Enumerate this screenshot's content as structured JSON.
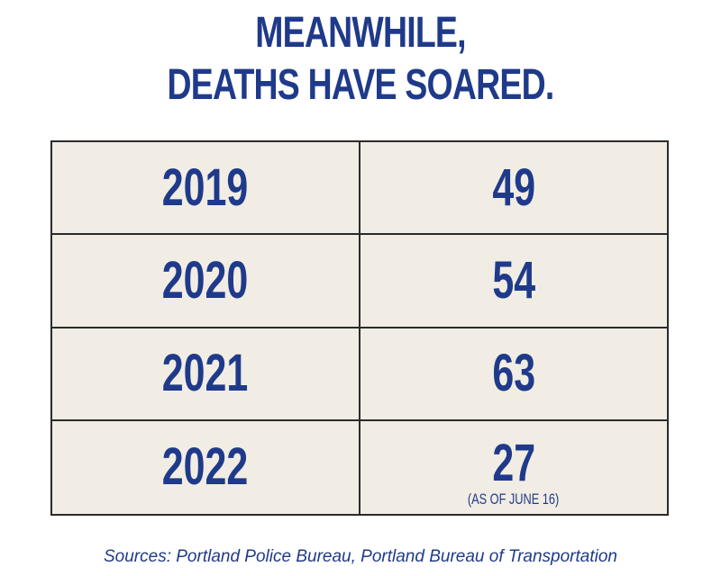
{
  "title_line1": "MEANWHILE,",
  "title_line2": "DEATHS HAVE SOARED.",
  "rows": [
    {
      "year": "2019",
      "deaths": "49",
      "note": ""
    },
    {
      "year": "2020",
      "deaths": "54",
      "note": ""
    },
    {
      "year": "2021",
      "deaths": "63",
      "note": ""
    },
    {
      "year": "2022",
      "deaths": "27",
      "note": "(AS OF JUNE 16)"
    }
  ],
  "sources": "Sources: Portland Police Bureau, Portland Bureau of Transportation",
  "colors": {
    "text": "#1f3a8a",
    "table_fill": "#f1ede4",
    "border": "#2b2b2b"
  },
  "chart_data": {
    "type": "table",
    "title": "MEANWHILE, DEATHS HAVE SOARED.",
    "columns": [
      "",
      ""
    ],
    "rows": [
      [
        "2019",
        49
      ],
      [
        "2020",
        54
      ],
      [
        "2021",
        63
      ],
      [
        "2022",
        27
      ]
    ],
    "annotations": [
      {
        "row": "2022",
        "text": "(AS OF JUNE 16)"
      }
    ]
  }
}
